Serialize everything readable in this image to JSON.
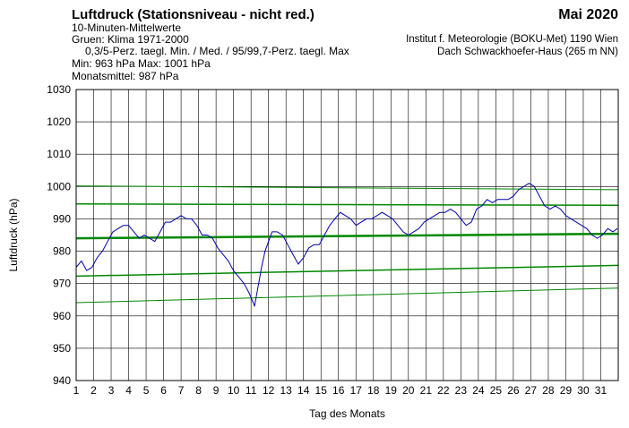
{
  "header": {
    "title": "Luftdruck (Stationsniveau - nicht red.)",
    "month": "Mai 2020",
    "line1": "10-Minuten-Mittelwerte",
    "line2": "Gruen: Klima 1971-2000",
    "line3": "0,3/5-Perz. taegl. Min. / Med. / 95/99,7-Perz. taegl. Max",
    "minmax": "Min:  963 hPa    Max: 1001 hPa",
    "monthly_mean": "Monatsmittel:  987 hPa",
    "institute": "Institut f. Meteorologie (BOKU-Met) 1190 Wien",
    "location": "Dach Schwackhoefer-Haus (265 m NN)"
  },
  "chart_data": {
    "type": "line",
    "xlabel": "Tag des Monats",
    "ylabel": "Luftdruck (hPa)",
    "xlim": [
      1,
      32
    ],
    "ylim": [
      940,
      1030
    ],
    "xticks": [
      1,
      2,
      3,
      4,
      5,
      6,
      7,
      8,
      9,
      10,
      11,
      12,
      13,
      14,
      15,
      16,
      17,
      18,
      19,
      20,
      21,
      22,
      23,
      24,
      25,
      26,
      27,
      28,
      29,
      30,
      31
    ],
    "yticks": [
      940,
      950,
      960,
      970,
      980,
      990,
      1000,
      1010,
      1020,
      1030
    ],
    "grid": true,
    "colors": {
      "measured": "#0000aa",
      "climate": "#008800"
    },
    "series": [
      {
        "name": "0,3-Perz. taegl. Min.",
        "x": [
          1,
          32
        ],
        "values": [
          964.1,
          968.6
        ]
      },
      {
        "name": "5-Perz. taegl. Min.",
        "x": [
          1,
          32
        ],
        "values": [
          972.3,
          975.6
        ]
      },
      {
        "name": "Med.",
        "x": [
          1,
          32
        ],
        "values": [
          984.0,
          985.4
        ]
      },
      {
        "name": "95-Perz. taegl. Max",
        "x": [
          1,
          32
        ],
        "values": [
          994.6,
          994.2
        ]
      },
      {
        "name": "99,7-Perz. taegl. Max",
        "x": [
          1,
          32
        ],
        "values": [
          1000.2,
          999.0
        ]
      },
      {
        "name": "10-Minuten-Mittelwerte",
        "x": [
          1.0,
          1.3,
          1.6,
          1.9,
          2.2,
          2.5,
          2.8,
          3.1,
          3.4,
          3.7,
          4.0,
          4.3,
          4.6,
          4.9,
          5.2,
          5.5,
          5.8,
          6.1,
          6.4,
          6.7,
          7.0,
          7.3,
          7.6,
          7.9,
          8.2,
          8.5,
          8.8,
          9.1,
          9.4,
          9.7,
          10.0,
          10.3,
          10.6,
          10.9,
          11.2,
          11.4,
          11.6,
          11.8,
          12.0,
          12.2,
          12.5,
          12.8,
          13.1,
          13.4,
          13.7,
          14.0,
          14.3,
          14.6,
          14.9,
          15.2,
          15.5,
          15.8,
          16.1,
          16.4,
          16.7,
          17.0,
          17.3,
          17.6,
          17.9,
          18.2,
          18.5,
          18.8,
          19.1,
          19.4,
          19.7,
          20.0,
          20.3,
          20.6,
          20.9,
          21.2,
          21.5,
          21.8,
          22.1,
          22.4,
          22.7,
          23.0,
          23.3,
          23.6,
          23.9,
          24.2,
          24.5,
          24.8,
          25.1,
          25.4,
          25.7,
          26.0,
          26.3,
          26.6,
          26.9,
          27.2,
          27.5,
          27.8,
          28.1,
          28.4,
          28.7,
          29.0,
          29.3,
          29.6,
          29.9,
          30.2,
          30.5,
          30.8,
          31.1,
          31.4,
          31.7,
          31.95
        ],
        "values": [
          975,
          977,
          974,
          975,
          978,
          980,
          983,
          986,
          987,
          988,
          988,
          986,
          984,
          985,
          984,
          983,
          986,
          989,
          989,
          990,
          991,
          990,
          990,
          988,
          985,
          985,
          984,
          981,
          979,
          977,
          974,
          972,
          970,
          967,
          963,
          969,
          975,
          980,
          983,
          986,
          986,
          985,
          982,
          979,
          976,
          978,
          981,
          982,
          982,
          985,
          988,
          990,
          992,
          991,
          990,
          988,
          989,
          990,
          990,
          991,
          992,
          991,
          990,
          988,
          986,
          985,
          986,
          987,
          989,
          990,
          991,
          992,
          992,
          993,
          992,
          990,
          988,
          989,
          993,
          994,
          996,
          995,
          996,
          996,
          996,
          997,
          999,
          1000,
          1001,
          1000,
          997,
          994,
          993,
          994,
          993,
          991,
          990,
          989,
          988,
          987,
          985,
          984,
          985,
          987,
          986,
          987
        ]
      }
    ]
  }
}
